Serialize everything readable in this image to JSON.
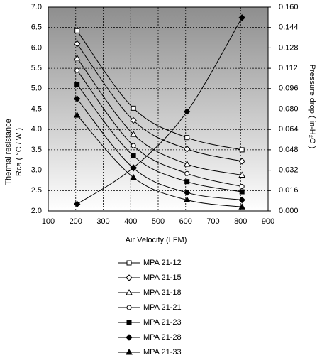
{
  "chart_data": {
    "type": "line",
    "xlabel": "Air Velocity (LFM)",
    "ylabel": [
      "Thermal resistance",
      "Rca ( °C / W )"
    ],
    "y2label": "Pressure drop  ( in-H₂O )",
    "x": [
      205,
      410,
      605,
      805
    ],
    "xlim": [
      100,
      900
    ],
    "xticks": [
      100,
      200,
      300,
      400,
      500,
      600,
      700,
      800,
      900
    ],
    "ylim": [
      2,
      7
    ],
    "yticks": [
      {
        "value": 2,
        "label": "2.0"
      },
      {
        "value": 2.5,
        "label": "2.5"
      },
      {
        "value": 3,
        "label": "3.0"
      },
      {
        "value": 3.5,
        "label": "3.5"
      },
      {
        "value": 4,
        "label": "4.0"
      },
      {
        "value": 4.5,
        "label": "4.5"
      },
      {
        "value": 5,
        "label": "5.0"
      },
      {
        "value": 5.5,
        "label": "5.5"
      },
      {
        "value": 6,
        "label": "6.0"
      },
      {
        "value": 6.5,
        "label": "6.5"
      },
      {
        "value": 7,
        "label": "7.0"
      }
    ],
    "y2lim": [
      0,
      0.16
    ],
    "y2ticks": [
      {
        "value": 0,
        "label": "0.000"
      },
      {
        "value": 0.016,
        "label": "0.016"
      },
      {
        "value": 0.032,
        "label": "0.032"
      },
      {
        "value": 0.048,
        "label": "0.048"
      },
      {
        "value": 0.064,
        "label": "0.064"
      },
      {
        "value": 0.08,
        "label": "0.080"
      },
      {
        "value": 0.096,
        "label": "0.096"
      },
      {
        "value": 0.112,
        "label": "0.112"
      },
      {
        "value": 0.128,
        "label": "0.128"
      },
      {
        "value": 0.144,
        "label": "0.144"
      },
      {
        "value": 0.16,
        "label": "0.160"
      }
    ],
    "grid": true,
    "series": [
      {
        "name": "MPA 21-12",
        "color": "#000000",
        "marker": "square-open",
        "values": [
          6.42,
          4.52,
          3.8,
          3.5
        ]
      },
      {
        "name": "MPA 21-15",
        "color": "#000000",
        "marker": "diamond-open",
        "values": [
          6.1,
          4.22,
          3.52,
          3.22
        ]
      },
      {
        "name": "MPA 21-18",
        "color": "#000000",
        "marker": "triangle-open",
        "values": [
          5.75,
          3.88,
          3.15,
          2.88
        ]
      },
      {
        "name": "MPA 21-21",
        "color": "#000000",
        "marker": "circle-open",
        "values": [
          5.45,
          3.6,
          2.92,
          2.6
        ]
      },
      {
        "name": "MPA 21-23",
        "color": "#000000",
        "marker": "square",
        "values": [
          5.1,
          3.35,
          2.72,
          2.47
        ]
      },
      {
        "name": "MPA 21-28",
        "color": "#000000",
        "marker": "diamond",
        "values": [
          4.75,
          3.05,
          2.45,
          2.27
        ]
      },
      {
        "name": "MPA 21-33",
        "color": "#000000",
        "marker": "triangle",
        "values": [
          4.35,
          2.82,
          2.27,
          2.1
        ]
      },
      {
        "color": "#000000",
        "marker": "diamond",
        "axis": "y2",
        "values": [
          0.0054,
          0.034,
          0.078,
          0.1517
        ]
      }
    ]
  }
}
